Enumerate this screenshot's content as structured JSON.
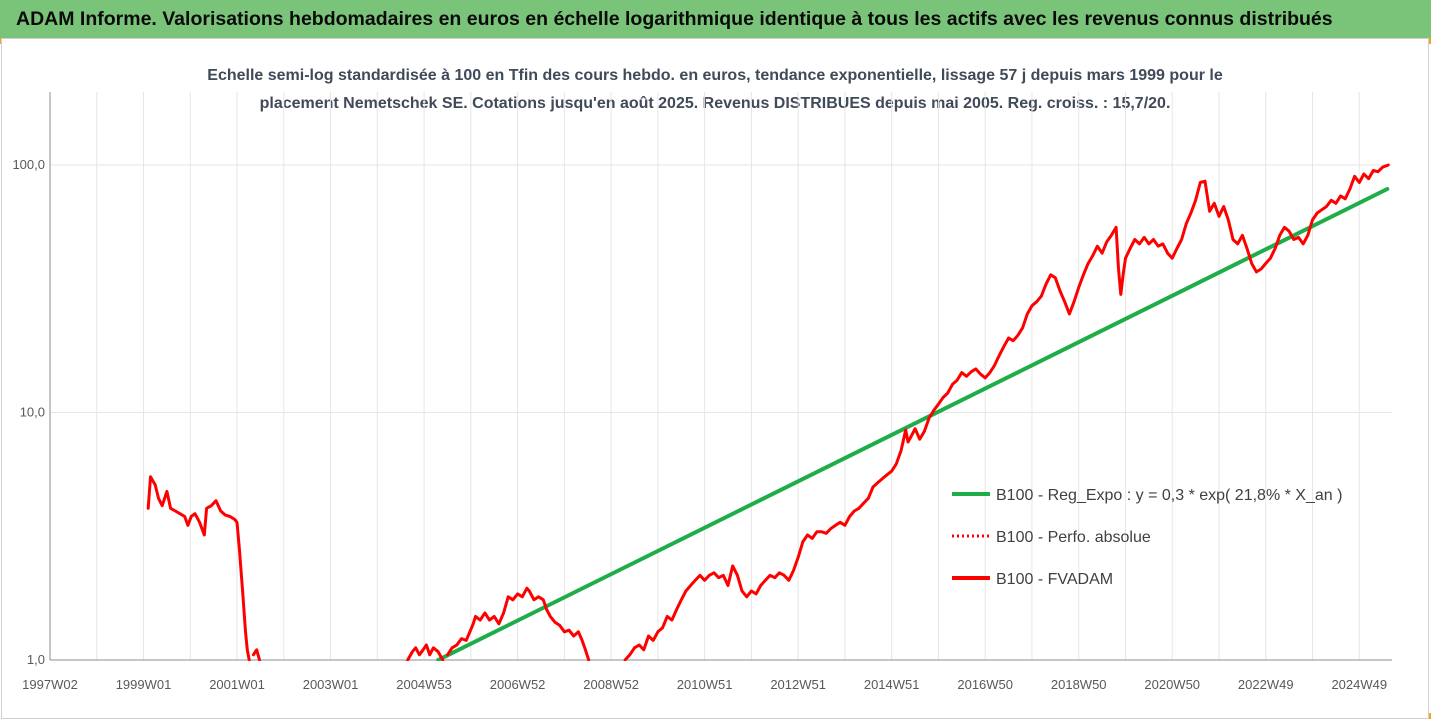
{
  "banner": {
    "title": "ADAM Informe. Valorisations hebdomadaires en euros en échelle logarithmique identique à tous les actifs avec les revenus connus distribués"
  },
  "colors": {
    "banner_bg": "#7ac47a",
    "corner_accent": "#f2a71b",
    "trend_line": "#1fad4a",
    "fvadam_line": "#ff0000",
    "perf_line": "#ff0000"
  },
  "chart_data": {
    "type": "line",
    "title_line1": "Echelle semi-log standardisée à 100 en Tfin des cours hebdo. en euros, tendance exponentielle, lissage 57 j depuis mars 1999 pour le",
    "title_line2": "placement Nemetschek SE. Cotations jusqu'en août 2025. Revenus DISTRIBUES depuis mai 2005. Reg. croiss. : 15,7/20.",
    "y_scale": "log",
    "ylim": [
      1,
      200
    ],
    "xlim": [
      1997.0,
      2025.7
    ],
    "y_ticks": [
      {
        "value": 1,
        "label": "1,0"
      },
      {
        "value": 10,
        "label": "10,0"
      },
      {
        "value": 100,
        "label": "100,0"
      }
    ],
    "x_ticks": [
      {
        "value": 1997.0,
        "label": "1997W02"
      },
      {
        "value": 1999.0,
        "label": "1999W01"
      },
      {
        "value": 2001.0,
        "label": "2001W01"
      },
      {
        "value": 2003.0,
        "label": "2003W01"
      },
      {
        "value": 2005.0,
        "label": "2004W53"
      },
      {
        "value": 2007.0,
        "label": "2006W52"
      },
      {
        "value": 2009.0,
        "label": "2008W52"
      },
      {
        "value": 2011.0,
        "label": "2010W51"
      },
      {
        "value": 2013.0,
        "label": "2012W51"
      },
      {
        "value": 2015.0,
        "label": "2014W51"
      },
      {
        "value": 2017.0,
        "label": "2016W50"
      },
      {
        "value": 2019.0,
        "label": "2018W50"
      },
      {
        "value": 2021.0,
        "label": "2020W50"
      },
      {
        "value": 2023.0,
        "label": "2022W49"
      },
      {
        "value": 2025.0,
        "label": "2024W49"
      }
    ],
    "grid": "vertical",
    "legend_position": "right",
    "series": [
      {
        "name": "B100 - Reg_Expo : y = 0,3 * exp( 21,8% *  X_an )",
        "style": "solid",
        "color": "#1fad4a",
        "points": [
          [
            2005.3,
            1.0
          ],
          [
            2025.6,
            80.0
          ]
        ]
      },
      {
        "name": "B100 - Perfo. absolue",
        "style": "dotted",
        "color": "#ff0000",
        "points": []
      },
      {
        "name": "B100 - FVADAM",
        "style": "solid",
        "color": "#ff0000",
        "segments": [
          [
            [
              1999.1,
              4.1
            ],
            [
              1999.15,
              5.5
            ],
            [
              1999.25,
              5.1
            ],
            [
              1999.32,
              4.5
            ],
            [
              1999.4,
              4.2
            ],
            [
              1999.5,
              4.8
            ],
            [
              1999.58,
              4.1
            ],
            [
              1999.68,
              4.0
            ],
            [
              1999.78,
              3.9
            ],
            [
              1999.88,
              3.8
            ],
            [
              1999.95,
              3.5
            ],
            [
              2000.02,
              3.8
            ],
            [
              2000.1,
              3.9
            ],
            [
              2000.2,
              3.6
            ],
            [
              2000.3,
              3.2
            ],
            [
              2000.35,
              4.1
            ],
            [
              2000.45,
              4.2
            ],
            [
              2000.55,
              4.4
            ],
            [
              2000.65,
              4.0
            ],
            [
              2000.75,
              3.85
            ],
            [
              2000.85,
              3.8
            ],
            [
              2000.95,
              3.7
            ],
            [
              2001.0,
              3.6
            ],
            [
              2001.05,
              2.8
            ],
            [
              2001.12,
              1.9
            ],
            [
              2001.18,
              1.3
            ],
            [
              2001.22,
              1.1
            ],
            [
              2001.26,
              1.0
            ]
          ],
          [
            [
              2001.35,
              1.05
            ],
            [
              2001.42,
              1.1
            ],
            [
              2001.48,
              1.0
            ]
          ],
          [
            [
              2004.65,
              1.0
            ],
            [
              2004.75,
              1.08
            ],
            [
              2004.82,
              1.12
            ],
            [
              2004.9,
              1.05
            ],
            [
              2004.98,
              1.1
            ],
            [
              2005.05,
              1.15
            ],
            [
              2005.12,
              1.05
            ],
            [
              2005.2,
              1.12
            ],
            [
              2005.3,
              1.08
            ],
            [
              2005.4,
              1.0
            ]
          ],
          [
            [
              2005.5,
              1.05
            ],
            [
              2005.6,
              1.12
            ],
            [
              2005.7,
              1.15
            ],
            [
              2005.8,
              1.22
            ],
            [
              2005.9,
              1.2
            ],
            [
              2005.98,
              1.3
            ],
            [
              2006.05,
              1.4
            ],
            [
              2006.1,
              1.5
            ],
            [
              2006.2,
              1.45
            ],
            [
              2006.3,
              1.55
            ],
            [
              2006.4,
              1.45
            ],
            [
              2006.5,
              1.5
            ],
            [
              2006.6,
              1.4
            ],
            [
              2006.7,
              1.55
            ],
            [
              2006.8,
              1.8
            ],
            [
              2006.9,
              1.75
            ],
            [
              2007.0,
              1.85
            ],
            [
              2007.1,
              1.8
            ],
            [
              2007.2,
              1.95
            ],
            [
              2007.25,
              1.9
            ],
            [
              2007.35,
              1.75
            ],
            [
              2007.45,
              1.8
            ],
            [
              2007.55,
              1.75
            ],
            [
              2007.62,
              1.6
            ],
            [
              2007.7,
              1.5
            ],
            [
              2007.8,
              1.42
            ],
            [
              2007.9,
              1.38
            ],
            [
              2008.0,
              1.3
            ],
            [
              2008.1,
              1.32
            ],
            [
              2008.2,
              1.25
            ],
            [
              2008.3,
              1.3
            ],
            [
              2008.38,
              1.2
            ],
            [
              2008.45,
              1.1
            ],
            [
              2008.52,
              1.0
            ]
          ],
          [
            [
              2009.3,
              1.0
            ],
            [
              2009.4,
              1.05
            ],
            [
              2009.5,
              1.12
            ],
            [
              2009.6,
              1.15
            ],
            [
              2009.7,
              1.1
            ],
            [
              2009.8,
              1.25
            ],
            [
              2009.9,
              1.2
            ],
            [
              2010.0,
              1.3
            ],
            [
              2010.1,
              1.35
            ],
            [
              2010.2,
              1.5
            ],
            [
              2010.3,
              1.45
            ],
            [
              2010.4,
              1.6
            ],
            [
              2010.5,
              1.75
            ],
            [
              2010.6,
              1.9
            ],
            [
              2010.7,
              2.0
            ],
            [
              2010.8,
              2.1
            ],
            [
              2010.9,
              2.2
            ],
            [
              2011.0,
              2.1
            ],
            [
              2011.1,
              2.2
            ],
            [
              2011.2,
              2.25
            ],
            [
              2011.3,
              2.15
            ],
            [
              2011.4,
              2.2
            ],
            [
              2011.5,
              2.0
            ],
            [
              2011.6,
              2.4
            ],
            [
              2011.7,
              2.2
            ],
            [
              2011.8,
              1.9
            ],
            [
              2011.9,
              1.8
            ],
            [
              2012.0,
              1.9
            ],
            [
              2012.1,
              1.85
            ],
            [
              2012.2,
              2.0
            ],
            [
              2012.3,
              2.1
            ],
            [
              2012.4,
              2.2
            ],
            [
              2012.5,
              2.15
            ],
            [
              2012.6,
              2.25
            ],
            [
              2012.7,
              2.2
            ],
            [
              2012.8,
              2.1
            ],
            [
              2012.9,
              2.3
            ],
            [
              2013.0,
              2.6
            ],
            [
              2013.1,
              3.0
            ],
            [
              2013.2,
              3.2
            ],
            [
              2013.3,
              3.1
            ],
            [
              2013.4,
              3.3
            ],
            [
              2013.5,
              3.3
            ],
            [
              2013.6,
              3.25
            ],
            [
              2013.7,
              3.4
            ],
            [
              2013.8,
              3.5
            ],
            [
              2013.9,
              3.6
            ],
            [
              2014.0,
              3.5
            ],
            [
              2014.1,
              3.8
            ],
            [
              2014.2,
              4.0
            ],
            [
              2014.3,
              4.1
            ],
            [
              2014.4,
              4.3
            ],
            [
              2014.5,
              4.5
            ],
            [
              2014.6,
              5.0
            ],
            [
              2014.7,
              5.2
            ],
            [
              2014.8,
              5.4
            ],
            [
              2014.9,
              5.6
            ],
            [
              2015.0,
              5.8
            ],
            [
              2015.1,
              6.2
            ],
            [
              2015.2,
              7.0
            ],
            [
              2015.3,
              8.5
            ],
            [
              2015.35,
              7.6
            ],
            [
              2015.4,
              7.9
            ],
            [
              2015.5,
              8.6
            ],
            [
              2015.6,
              7.8
            ],
            [
              2015.7,
              8.4
            ],
            [
              2015.8,
              9.5
            ],
            [
              2015.9,
              10.2
            ],
            [
              2016.0,
              10.8
            ],
            [
              2016.1,
              11.5
            ],
            [
              2016.2,
              12.0
            ],
            [
              2016.3,
              13.0
            ],
            [
              2016.4,
              13.5
            ],
            [
              2016.5,
              14.5
            ],
            [
              2016.6,
              14.0
            ],
            [
              2016.7,
              14.6
            ],
            [
              2016.8,
              15.0
            ],
            [
              2016.9,
              14.3
            ],
            [
              2017.0,
              13.8
            ],
            [
              2017.1,
              14.5
            ],
            [
              2017.2,
              15.5
            ],
            [
              2017.3,
              17.0
            ],
            [
              2017.4,
              18.5
            ],
            [
              2017.5,
              20.0
            ],
            [
              2017.6,
              19.5
            ],
            [
              2017.7,
              20.5
            ],
            [
              2017.8,
              22.0
            ],
            [
              2017.9,
              25.0
            ],
            [
              2018.0,
              27.0
            ],
            [
              2018.1,
              28.0
            ],
            [
              2018.2,
              29.5
            ],
            [
              2018.3,
              33.0
            ],
            [
              2018.4,
              36.0
            ],
            [
              2018.5,
              35.0
            ],
            [
              2018.6,
              31.0
            ],
            [
              2018.7,
              28.0
            ],
            [
              2018.8,
              25.0
            ],
            [
              2018.9,
              28.0
            ],
            [
              2019.0,
              32.0
            ],
            [
              2019.1,
              36.0
            ],
            [
              2019.2,
              40.0
            ],
            [
              2019.3,
              43.0
            ],
            [
              2019.4,
              47.0
            ],
            [
              2019.5,
              44.0
            ],
            [
              2019.6,
              49.0
            ],
            [
              2019.7,
              52.0
            ],
            [
              2019.8,
              56.0
            ],
            [
              2019.85,
              38.0
            ],
            [
              2019.9,
              30.0
            ],
            [
              2019.95,
              36.0
            ],
            [
              2020.0,
              42.0
            ],
            [
              2020.1,
              46.0
            ],
            [
              2020.2,
              50.0
            ],
            [
              2020.3,
              48.0
            ],
            [
              2020.4,
              51.0
            ],
            [
              2020.5,
              48.0
            ],
            [
              2020.6,
              50.0
            ],
            [
              2020.7,
              47.0
            ],
            [
              2020.8,
              48.0
            ],
            [
              2020.9,
              44.0
            ],
            [
              2021.0,
              42.0
            ],
            [
              2021.1,
              46.0
            ],
            [
              2021.2,
              50.0
            ],
            [
              2021.3,
              58.0
            ],
            [
              2021.4,
              64.0
            ],
            [
              2021.5,
              72.0
            ],
            [
              2021.6,
              85.0
            ],
            [
              2021.7,
              86.0
            ],
            [
              2021.8,
              65.0
            ],
            [
              2021.9,
              70.0
            ],
            [
              2022.0,
              62.0
            ],
            [
              2022.1,
              68.0
            ],
            [
              2022.2,
              60.0
            ],
            [
              2022.3,
              50.0
            ],
            [
              2022.4,
              48.0
            ],
            [
              2022.5,
              52.0
            ],
            [
              2022.6,
              46.0
            ],
            [
              2022.7,
              40.0
            ],
            [
              2022.8,
              37.0
            ],
            [
              2022.9,
              38.0
            ],
            [
              2023.0,
              40.0
            ],
            [
              2023.1,
              42.0
            ],
            [
              2023.2,
              46.0
            ],
            [
              2023.3,
              52.0
            ],
            [
              2023.4,
              56.0
            ],
            [
              2023.5,
              54.0
            ],
            [
              2023.6,
              50.0
            ],
            [
              2023.7,
              51.0
            ],
            [
              2023.8,
              48.0
            ],
            [
              2023.9,
              52.0
            ],
            [
              2024.0,
              60.0
            ],
            [
              2024.1,
              64.0
            ],
            [
              2024.2,
              66.0
            ],
            [
              2024.3,
              68.0
            ],
            [
              2024.4,
              72.0
            ],
            [
              2024.5,
              70.0
            ],
            [
              2024.6,
              75.0
            ],
            [
              2024.7,
              73.0
            ],
            [
              2024.8,
              80.0
            ],
            [
              2024.9,
              90.0
            ],
            [
              2025.0,
              85.0
            ],
            [
              2025.1,
              92.0
            ],
            [
              2025.2,
              88.0
            ],
            [
              2025.3,
              95.0
            ],
            [
              2025.4,
              94.0
            ],
            [
              2025.5,
              98.0
            ],
            [
              2025.62,
              100.0
            ]
          ]
        ]
      }
    ]
  }
}
